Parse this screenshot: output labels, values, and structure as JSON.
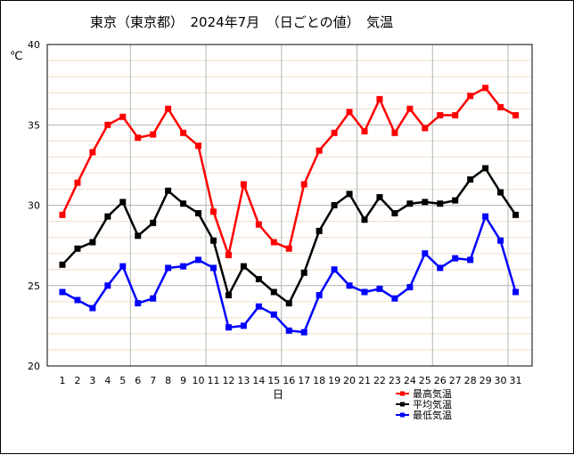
{
  "chart_data": {
    "type": "line",
    "title": "東京（東京都）　2024年7月　（日ごとの値）　気温",
    "xlabel": "日",
    "ylabel": "℃",
    "ylim": [
      20,
      40
    ],
    "yticks": [
      20,
      25,
      30,
      35,
      40
    ],
    "grid": true,
    "legend_position": "bottom-right",
    "categories": [
      "1",
      "2",
      "3",
      "4",
      "5",
      "6",
      "7",
      "8",
      "9",
      "10",
      "11",
      "12",
      "13",
      "14",
      "15",
      "16",
      "17",
      "18",
      "19",
      "20",
      "21",
      "22",
      "23",
      "24",
      "25",
      "26",
      "27",
      "28",
      "29",
      "30",
      "31"
    ],
    "series": [
      {
        "name": "最高気温",
        "color": "#ff0000",
        "values": [
          29.4,
          31.4,
          33.3,
          35.0,
          35.5,
          34.2,
          34.4,
          36.0,
          34.5,
          33.7,
          29.6,
          26.9,
          31.3,
          28.8,
          27.7,
          27.3,
          31.3,
          33.4,
          34.5,
          35.8,
          34.6,
          36.6,
          34.5,
          36.0,
          34.8,
          35.6,
          35.6,
          36.8,
          37.3,
          36.1,
          35.6
        ]
      },
      {
        "name": "平均気温",
        "color": "#000000",
        "values": [
          26.3,
          27.3,
          27.7,
          29.3,
          30.2,
          28.1,
          28.9,
          30.9,
          30.1,
          29.5,
          27.8,
          24.4,
          26.2,
          25.4,
          24.6,
          23.9,
          25.8,
          28.4,
          30.0,
          30.7,
          29.1,
          30.5,
          29.5,
          30.1,
          30.2,
          30.1,
          30.3,
          31.6,
          32.3,
          30.8,
          29.4
        ]
      },
      {
        "name": "最低気温",
        "color": "#0000ff",
        "values": [
          24.6,
          24.1,
          23.6,
          25.0,
          26.2,
          23.9,
          24.2,
          26.1,
          26.2,
          26.6,
          26.1,
          22.4,
          22.5,
          23.7,
          23.2,
          22.2,
          22.1,
          24.4,
          26.0,
          25.0,
          24.6,
          24.8,
          24.2,
          24.9,
          27.0,
          26.1,
          26.7,
          26.6,
          29.3,
          27.8,
          24.6
        ]
      }
    ]
  }
}
